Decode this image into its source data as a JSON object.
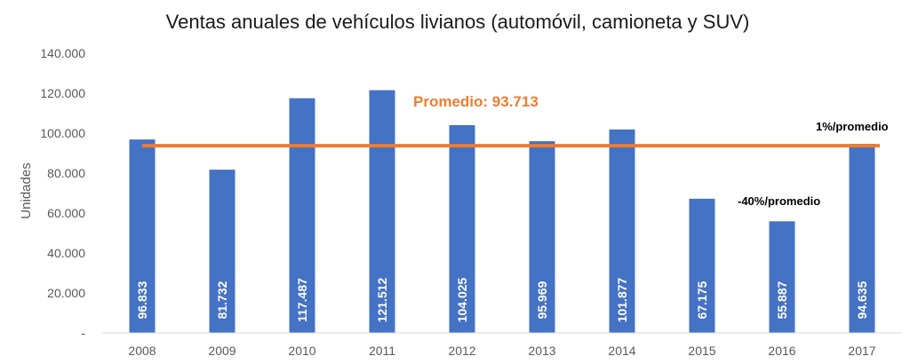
{
  "chart_data": {
    "type": "bar",
    "title": "Ventas anuales de vehículos livianos (automóvil, camioneta y SUV)",
    "ylabel": "Unidades",
    "xlabel": "",
    "categories": [
      "2008",
      "2009",
      "2010",
      "2011",
      "2012",
      "2013",
      "2014",
      "2015",
      "2016",
      "2017"
    ],
    "values": [
      96833,
      81732,
      117487,
      121512,
      104025,
      95969,
      101877,
      67175,
      55887,
      94635
    ],
    "data_labels": [
      "96.833",
      "81.732",
      "117.487",
      "121.512",
      "104.025",
      "95.969",
      "101.877",
      "67.175",
      "55.887",
      "94.635"
    ],
    "ylim": [
      0,
      140000
    ],
    "y_ticks": [
      0,
      20000,
      40000,
      60000,
      80000,
      100000,
      120000,
      140000
    ],
    "y_tick_labels": [
      "-",
      "20.000",
      "40.000",
      "60.000",
      "80.000",
      "100.000",
      "120.000",
      "140.000"
    ],
    "grid": false,
    "bar_color": "#4472C4",
    "average_line": {
      "value": 93713,
      "label": "Promedio: 93.713",
      "color": "#ED7D31"
    },
    "annotations": [
      "1%/promedio",
      "-40%/promedio"
    ]
  }
}
